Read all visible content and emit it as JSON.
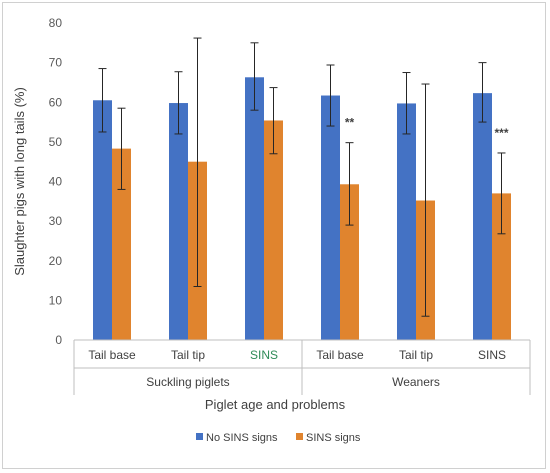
{
  "chart_data": {
    "type": "bar",
    "xlabel": "Piglet age and problems",
    "ylabel": "Slaughter pigs with long tails (%)",
    "ylim": [
      0,
      80
    ],
    "yticks": [
      0,
      10,
      20,
      30,
      40,
      50,
      60,
      70,
      80
    ],
    "categories": [
      "Tail base",
      "Tail tip",
      "SINS",
      "Tail base",
      "Tail tip",
      "SINS"
    ],
    "category_colors": [
      "#404040",
      "#404040",
      "#2e8b57",
      "#404040",
      "#404040",
      "#404040"
    ],
    "groups": [
      {
        "label": "Suckling piglets",
        "span": [
          0,
          2
        ]
      },
      {
        "label": "Weaners",
        "span": [
          3,
          5
        ]
      }
    ],
    "series": [
      {
        "name": "No SINS signs",
        "color": "#4472c4",
        "values": [
          60.5,
          59.8,
          66.3,
          61.7,
          59.7,
          62.3
        ],
        "err_low": [
          52.5,
          52.0,
          58.0,
          54.0,
          52.0,
          55.0
        ],
        "err_high": [
          68.5,
          67.7,
          75.0,
          69.4,
          67.5,
          70.0
        ]
      },
      {
        "name": "SINS signs",
        "color": "#e0842e",
        "values": [
          48.3,
          45.0,
          55.4,
          39.3,
          35.2,
          37.0
        ],
        "err_low": [
          38.0,
          13.5,
          47.0,
          29.0,
          6.0,
          26.8
        ],
        "err_high": [
          58.5,
          76.2,
          63.7,
          49.8,
          64.6,
          47.2
        ]
      }
    ],
    "annotations": [
      {
        "category_index": 3,
        "series_index": 1,
        "text": "**"
      },
      {
        "category_index": 5,
        "series_index": 1,
        "text": "***"
      }
    ],
    "grid": false,
    "legend_position": "bottom"
  }
}
